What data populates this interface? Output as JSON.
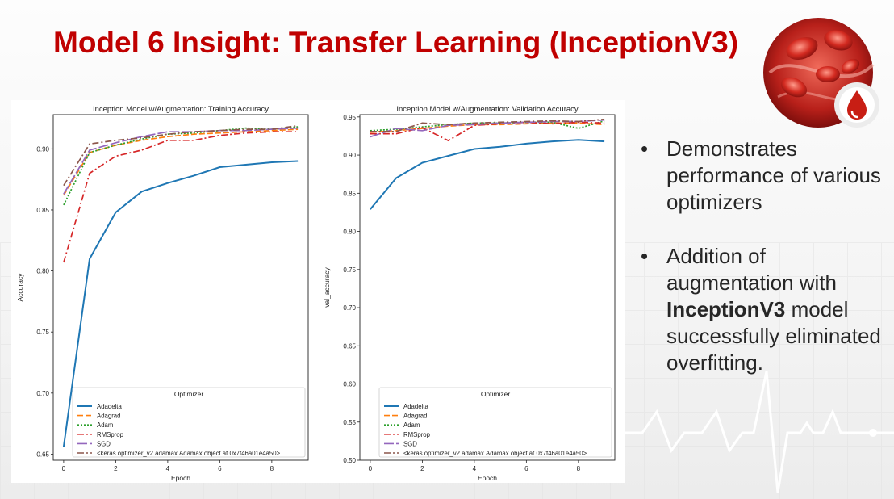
{
  "slide": {
    "title": "Model 6 Insight: Transfer Learning (InceptionV3)",
    "bullets": [
      {
        "text": "Demonstrates performance of various optimizers"
      },
      {
        "pre": " Addition of augmentation with ",
        "bold": "InceptionV3",
        "post": " model successfully eliminated overfitting."
      }
    ],
    "bullet_char": "•"
  },
  "colors": {
    "title": "#c00000",
    "text": "#262626"
  },
  "icons": [
    "blood-cells-image",
    "blood-drop-icon",
    "heartbeat-line"
  ],
  "chart_data": [
    {
      "type": "line",
      "title": "Inception Model w/Augmentation: Training Accuracy",
      "xlabel": "Epoch",
      "ylabel": "Accuracy",
      "xlim": [
        -0.4,
        9.4
      ],
      "ylim": [
        0.645,
        0.928
      ],
      "xticks": [
        0,
        2,
        4,
        6,
        8
      ],
      "yticks": [
        0.65,
        0.7,
        0.75,
        0.8,
        0.85,
        0.9
      ],
      "tick_format": 2,
      "legend": {
        "title": "Optimizer",
        "position": "lower right"
      },
      "x": [
        0,
        1,
        2,
        3,
        4,
        5,
        6,
        7,
        8,
        9
      ],
      "series": [
        {
          "name": "Adadelta",
          "color": "#1f77b4",
          "dash": "solid",
          "values": [
            0.656,
            0.81,
            0.848,
            0.865,
            0.872,
            0.878,
            0.885,
            0.887,
            0.889,
            0.89
          ]
        },
        {
          "name": "Adagrad",
          "color": "#ff7f0e",
          "dash": "dash",
          "values": [
            0.862,
            0.897,
            0.903,
            0.907,
            0.91,
            0.912,
            0.913,
            0.914,
            0.915,
            0.916
          ]
        },
        {
          "name": "Adam",
          "color": "#2ca02c",
          "dash": "dot",
          "values": [
            0.854,
            0.897,
            0.903,
            0.908,
            0.912,
            0.913,
            0.915,
            0.917,
            0.916,
            0.918
          ]
        },
        {
          "name": "RMSprop",
          "color": "#d62728",
          "dash": "dashdot",
          "values": [
            0.807,
            0.88,
            0.894,
            0.899,
            0.907,
            0.907,
            0.911,
            0.913,
            0.914,
            0.914
          ]
        },
        {
          "name": "SGD",
          "color": "#9467bd",
          "dash": "longdash",
          "values": [
            0.863,
            0.899,
            0.905,
            0.91,
            0.914,
            0.914,
            0.915,
            0.915,
            0.916,
            0.917
          ]
        },
        {
          "name": "<keras.optimizer_v2.adamax.Adamax object at 0x7f46a01e4a50>",
          "color": "#8c564b",
          "dash": "dashdot",
          "values": [
            0.87,
            0.904,
            0.907,
            0.909,
            0.912,
            0.914,
            0.915,
            0.916,
            0.916,
            0.919
          ]
        }
      ]
    },
    {
      "type": "line",
      "title": "Inception Model w/Augmentation: Validation Accuracy",
      "xlabel": "Epoch",
      "ylabel": "val_accuracy",
      "xlim": [
        -0.4,
        9.4
      ],
      "ylim": [
        0.5,
        0.953
      ],
      "xticks": [
        0,
        2,
        4,
        6,
        8
      ],
      "yticks": [
        0.5,
        0.55,
        0.6,
        0.65,
        0.7,
        0.75,
        0.8,
        0.85,
        0.9,
        0.95
      ],
      "tick_format": 2,
      "legend": {
        "title": "Optimizer",
        "position": "lower right"
      },
      "x": [
        0,
        1,
        2,
        3,
        4,
        5,
        6,
        7,
        8,
        9
      ],
      "series": [
        {
          "name": "Adadelta",
          "color": "#1f77b4",
          "dash": "solid",
          "values": [
            0.829,
            0.87,
            0.89,
            0.899,
            0.908,
            0.911,
            0.915,
            0.918,
            0.92,
            0.918
          ]
        },
        {
          "name": "Adagrad",
          "color": "#ff7f0e",
          "dash": "dash",
          "values": [
            0.93,
            0.932,
            0.935,
            0.938,
            0.94,
            0.94,
            0.941,
            0.942,
            0.942,
            0.94
          ]
        },
        {
          "name": "Adam",
          "color": "#2ca02c",
          "dash": "dot",
          "values": [
            0.932,
            0.934,
            0.937,
            0.94,
            0.942,
            0.942,
            0.943,
            0.943,
            0.935,
            0.945
          ]
        },
        {
          "name": "RMSprop",
          "color": "#d62728",
          "dash": "dashdot",
          "values": [
            0.928,
            0.928,
            0.936,
            0.919,
            0.939,
            0.941,
            0.943,
            0.941,
            0.943,
            0.942
          ]
        },
        {
          "name": "SGD",
          "color": "#9467bd",
          "dash": "longdash",
          "values": [
            0.924,
            0.935,
            0.932,
            0.939,
            0.94,
            0.942,
            0.943,
            0.944,
            0.944,
            0.946
          ]
        },
        {
          "name": "<keras.optimizer_v2.adamax.Adamax object at 0x7f46a01e4a50>",
          "color": "#8c564b",
          "dash": "dashdot",
          "values": [
            0.931,
            0.931,
            0.942,
            0.94,
            0.942,
            0.943,
            0.944,
            0.945,
            0.944,
            0.947
          ]
        }
      ]
    }
  ]
}
